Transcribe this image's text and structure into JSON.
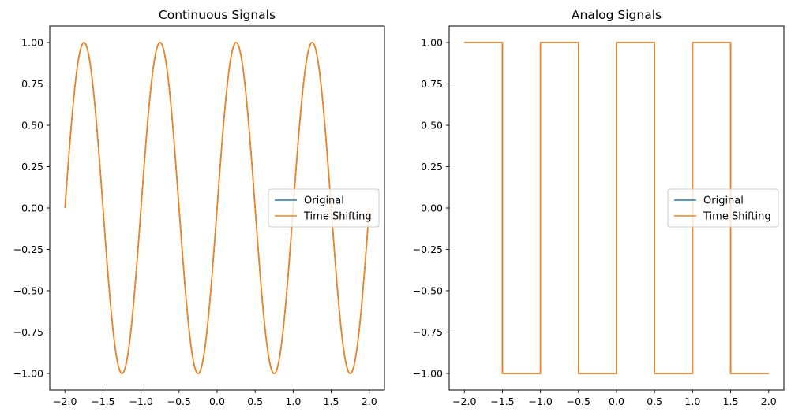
{
  "chart_data": [
    {
      "type": "line",
      "title": "Continuous Signals",
      "xlabel": "",
      "ylabel": "",
      "xlim": [
        -2.2,
        2.2
      ],
      "ylim": [
        -1.1,
        1.1
      ],
      "xticks": [
        "−2.0",
        "−1.5",
        "−1.0",
        "−0.5",
        "0.0",
        "0.5",
        "1.0",
        "1.5",
        "2.0"
      ],
      "xtick_values": [
        -2.0,
        -1.5,
        -1.0,
        -0.5,
        0.0,
        0.5,
        1.0,
        1.5,
        2.0
      ],
      "yticks": [
        "−1.00",
        "−0.75",
        "−0.50",
        "−0.25",
        "0.00",
        "0.25",
        "0.50",
        "0.75",
        "1.00"
      ],
      "ytick_values": [
        -1.0,
        -0.75,
        -0.5,
        -0.25,
        0.0,
        0.25,
        0.5,
        0.75,
        1.0
      ],
      "grid": false,
      "legend_position": "center-right",
      "series": [
        {
          "name": "Original",
          "color": "#1f77b4",
          "x": [
            -2.0,
            -1.75,
            -1.5,
            -1.25,
            -1.0,
            -0.75,
            -0.5,
            -0.25,
            0.0,
            0.25,
            0.5,
            0.75,
            1.0,
            1.25,
            1.5,
            1.75,
            2.0
          ],
          "y": [
            0,
            1,
            0,
            -1,
            0,
            1,
            0,
            -1,
            0,
            1,
            0,
            -1,
            0,
            1,
            0,
            -1,
            0
          ]
        },
        {
          "name": "Time Shifting",
          "color": "#ff7f0e",
          "x": [
            -2.0,
            -1.75,
            -1.5,
            -1.25,
            -1.0,
            -0.75,
            -0.5,
            -0.25,
            0.0,
            0.25,
            0.5,
            0.75,
            1.0,
            1.25,
            1.5,
            1.75,
            2.0
          ],
          "y": [
            0,
            1,
            0,
            -1,
            0,
            1,
            0,
            -1,
            0,
            1,
            0,
            -1,
            0,
            1,
            0,
            -1,
            0
          ]
        }
      ]
    },
    {
      "type": "line",
      "title": "Analog Signals",
      "xlabel": "",
      "ylabel": "",
      "xlim": [
        -2.2,
        2.2
      ],
      "ylim": [
        -1.1,
        1.1
      ],
      "xticks": [
        "−2.0",
        "−1.5",
        "−1.0",
        "−0.5",
        "0.0",
        "0.5",
        "1.0",
        "1.5",
        "2.0"
      ],
      "xtick_values": [
        -2.0,
        -1.5,
        -1.0,
        -0.5,
        0.0,
        0.5,
        1.0,
        1.5,
        2.0
      ],
      "yticks": [
        "−1.00",
        "−0.75",
        "−0.50",
        "−0.25",
        "0.00",
        "0.25",
        "0.50",
        "0.75",
        "1.00"
      ],
      "ytick_values": [
        -1.0,
        -0.75,
        -0.5,
        -0.25,
        0.0,
        0.25,
        0.5,
        0.75,
        1.0
      ],
      "grid": false,
      "legend_position": "center-right",
      "series": [
        {
          "name": "Original",
          "color": "#1f77b4",
          "x": [
            -2.0,
            -1.5,
            -1.5,
            -1.0,
            -1.0,
            -0.5,
            -0.5,
            0.0,
            0.0,
            0.5,
            0.5,
            1.0,
            1.0,
            1.5,
            1.5,
            2.0
          ],
          "y": [
            1,
            1,
            -1,
            -1,
            1,
            1,
            -1,
            -1,
            1,
            1,
            -1,
            -1,
            1,
            1,
            -1,
            -1
          ]
        },
        {
          "name": "Time Shifting",
          "color": "#ff7f0e",
          "x": [
            -2.0,
            -1.5,
            -1.5,
            -1.0,
            -1.0,
            -0.5,
            -0.5,
            0.0,
            0.0,
            0.5,
            0.5,
            1.0,
            1.0,
            1.5,
            1.5,
            2.0
          ],
          "y": [
            1,
            1,
            -1,
            -1,
            1,
            1,
            -1,
            -1,
            1,
            1,
            -1,
            -1,
            1,
            1,
            -1,
            -1
          ]
        }
      ]
    }
  ]
}
